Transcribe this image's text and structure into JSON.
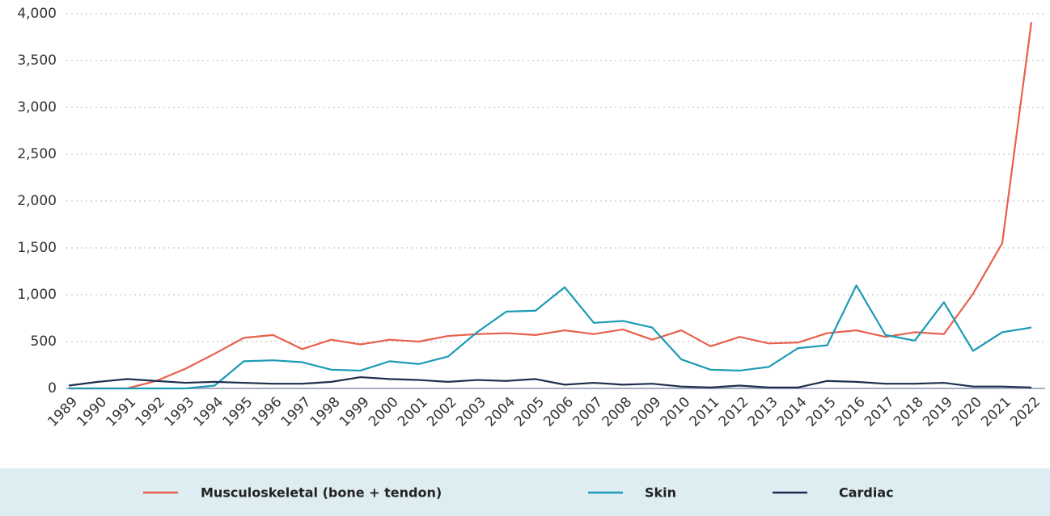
{
  "chart_data": {
    "type": "line",
    "x": [
      1989,
      1990,
      1991,
      1992,
      1993,
      1994,
      1995,
      1996,
      1997,
      1998,
      1999,
      2000,
      2001,
      2002,
      2003,
      2004,
      2005,
      2006,
      2007,
      2008,
      2009,
      2010,
      2011,
      2012,
      2013,
      2014,
      2015,
      2016,
      2017,
      2018,
      2019,
      2020,
      2021,
      2022
    ],
    "series": [
      {
        "name": "Musculoskeletal (bone + tendon)",
        "color": "#e8604c",
        "values": [
          0,
          0,
          0,
          80,
          210,
          370,
          540,
          570,
          420,
          520,
          470,
          520,
          500,
          560,
          580,
          590,
          570,
          620,
          580,
          630,
          520,
          620,
          450,
          550,
          480,
          490,
          590,
          620,
          550,
          600,
          580,
          1010,
          1550,
          3910
        ]
      },
      {
        "name": "Skin",
        "color": "#1b9ab5",
        "values": [
          0,
          0,
          0,
          0,
          0,
          30,
          290,
          300,
          280,
          200,
          190,
          290,
          260,
          340,
          600,
          820,
          830,
          1080,
          700,
          720,
          650,
          310,
          200,
          190,
          230,
          430,
          460,
          1100,
          570,
          510,
          920,
          400,
          600,
          650
        ]
      },
      {
        "name": "Cardiac",
        "color": "#1c2f4f",
        "values": [
          30,
          70,
          100,
          80,
          60,
          70,
          60,
          50,
          50,
          70,
          120,
          100,
          90,
          70,
          90,
          80,
          100,
          40,
          60,
          40,
          50,
          20,
          10,
          30,
          10,
          10,
          80,
          70,
          50,
          50,
          60,
          20,
          20,
          10
        ]
      }
    ],
    "ylim": [
      0,
      4000
    ],
    "yticks": [
      0,
      500,
      {
        "value": 1000,
        "label": "1,000"
      },
      {
        "value": 1500,
        "label": "1,500"
      },
      {
        "value": 2000,
        "label": "2,000"
      },
      {
        "value": 2500,
        "label": "2,500"
      },
      {
        "value": 3000,
        "label": "3,000"
      },
      {
        "value": 3500,
        "label": "3,500"
      },
      {
        "value": 4000,
        "label": "4,000"
      }
    ],
    "xlim": [
      1989,
      2022
    ],
    "grid": true
  }
}
